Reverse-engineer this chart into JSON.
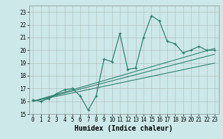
{
  "xlabel": "Humidex (Indice chaleur)",
  "bg_color": "#cce8e8",
  "line_color": "#2e7d6e",
  "xlim": [
    -0.5,
    23.5
  ],
  "ylim": [
    15,
    23.5
  ],
  "xticks": [
    0,
    1,
    2,
    3,
    4,
    5,
    6,
    7,
    8,
    9,
    10,
    11,
    12,
    13,
    14,
    15,
    16,
    17,
    18,
    19,
    20,
    21,
    22,
    23
  ],
  "yticks": [
    15,
    16,
    17,
    18,
    19,
    20,
    21,
    22,
    23
  ],
  "main_y": [
    16.1,
    16.0,
    16.2,
    16.6,
    16.9,
    17.0,
    16.4,
    15.3,
    16.4,
    19.3,
    19.1,
    21.3,
    18.5,
    18.6,
    21.0,
    22.7,
    22.3,
    20.7,
    20.5,
    19.8,
    20.0,
    20.3,
    20.0,
    20.0
  ],
  "line1_y": [
    16.0,
    16.13,
    16.26,
    16.39,
    16.52,
    16.65,
    16.78,
    16.91,
    17.04,
    17.17,
    17.3,
    17.43,
    17.56,
    17.69,
    17.82,
    17.95,
    18.08,
    18.21,
    18.34,
    18.47,
    18.6,
    18.73,
    18.86,
    18.99
  ],
  "line2_y": [
    16.0,
    16.16,
    16.32,
    16.48,
    16.64,
    16.8,
    16.96,
    17.12,
    17.28,
    17.44,
    17.6,
    17.76,
    17.92,
    18.08,
    18.24,
    18.4,
    18.56,
    18.72,
    18.88,
    19.04,
    19.2,
    19.36,
    19.52,
    19.68
  ],
  "line3_y": [
    16.0,
    16.18,
    16.36,
    16.54,
    16.72,
    16.9,
    17.08,
    17.26,
    17.44,
    17.62,
    17.8,
    17.98,
    18.16,
    18.34,
    18.52,
    18.7,
    18.88,
    19.06,
    19.24,
    19.42,
    19.6,
    19.78,
    19.96,
    20.14
  ]
}
